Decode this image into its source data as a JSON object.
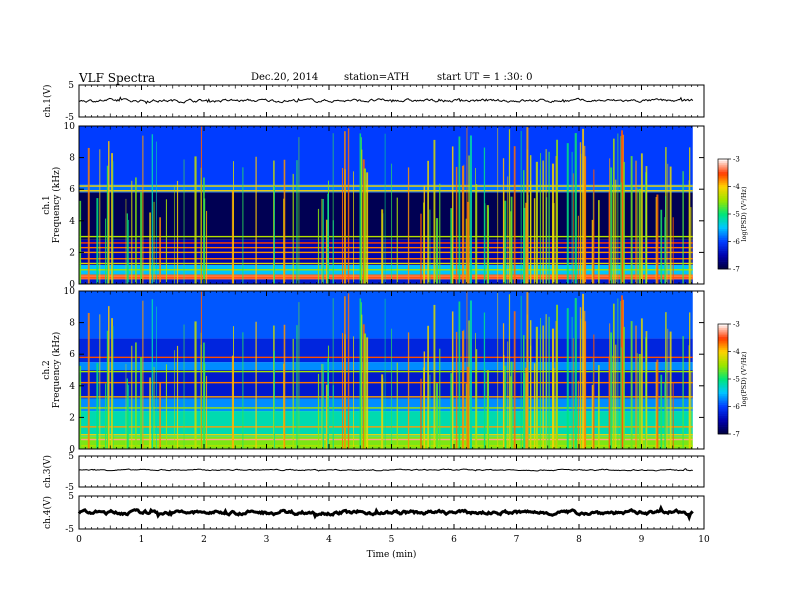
{
  "header": {
    "title": "VLF Spectra",
    "date": "Dec.20, 2014",
    "station": "station=ATH",
    "start": "start  UT =   1 :30: 0"
  },
  "chart_data": {
    "type": "heatmap",
    "title": "VLF Spectra",
    "xlabel": "Time (min)",
    "xlim": [
      0,
      10
    ],
    "x_ticks": [
      "0",
      "1",
      "2",
      "3",
      "4",
      "5",
      "6",
      "7",
      "8",
      "9",
      "10"
    ],
    "data_end_min": 9.82,
    "panels": [
      {
        "id": "ch1_wave",
        "kind": "waveform",
        "ylabel": "ch.1(V)",
        "ylim": [
          -5,
          5
        ],
        "y_ticks": [
          "5",
          "-5"
        ],
        "baseline": 0.1,
        "noise": 0.35
      },
      {
        "id": "ch1_spec",
        "kind": "spectrogram",
        "ylabel": "Frequency (kHz)",
        "channel_label": "ch.1",
        "ylim": [
          0,
          10
        ],
        "y_ticks": [
          "0",
          "2",
          "4",
          "6",
          "8",
          "10"
        ],
        "bands": [
          {
            "f0": 0.0,
            "f1": 0.3,
            "v": -6.3
          },
          {
            "f0": 0.3,
            "f1": 0.6,
            "v": -3.6
          },
          {
            "f0": 0.6,
            "f1": 1.2,
            "v": -5.5
          },
          {
            "f0": 1.2,
            "f1": 2.8,
            "v": -6.5
          },
          {
            "f0": 2.8,
            "f1": 5.8,
            "v": -6.9
          },
          {
            "f0": 5.8,
            "f1": 6.3,
            "v": -5.8
          },
          {
            "f0": 6.3,
            "f1": 10.0,
            "v": -6.0
          }
        ],
        "lines_khz": [
          0.35,
          0.5,
          0.9,
          1.3,
          1.6,
          2.0,
          2.3,
          2.6,
          3.0,
          5.9,
          6.2
        ]
      },
      {
        "id": "ch2_spec",
        "kind": "spectrogram",
        "ylabel": "Frequency (kHz)",
        "channel_label": "ch.2",
        "ylim": [
          0,
          10
        ],
        "y_ticks": [
          "0",
          "2",
          "4",
          "6",
          "8",
          "10"
        ],
        "bands": [
          {
            "f0": 0.0,
            "f1": 0.8,
            "v": -4.6
          },
          {
            "f0": 0.8,
            "f1": 2.4,
            "v": -5.2
          },
          {
            "f0": 2.4,
            "f1": 3.2,
            "v": -5.7
          },
          {
            "f0": 3.2,
            "f1": 5.0,
            "v": -6.3
          },
          {
            "f0": 5.0,
            "f1": 5.5,
            "v": -5.7
          },
          {
            "f0": 5.5,
            "f1": 7.0,
            "v": -6.2
          },
          {
            "f0": 7.0,
            "f1": 10.0,
            "v": -5.9
          }
        ],
        "lines_khz": [
          0.2,
          0.6,
          0.9,
          1.4,
          2.6,
          3.3,
          4.2,
          4.9,
          5.8
        ]
      },
      {
        "id": "ch3_wave",
        "kind": "waveform",
        "ylabel": "ch.3(V)",
        "ylim": [
          -5,
          5
        ],
        "y_ticks": [
          "5",
          "-5"
        ],
        "baseline": 0.5,
        "noise": 0.15
      },
      {
        "id": "ch4_wave",
        "kind": "waveform",
        "ylabel": "ch.4(V)",
        "ylim": [
          -5,
          5
        ],
        "y_ticks": [
          "5",
          "-5"
        ],
        "baseline": 0.0,
        "noise": 0.4
      }
    ],
    "colorbar": {
      "label": "log(PSD) (V²/Hz)",
      "range": [
        -7,
        -3
      ],
      "ticks": [
        "-3",
        "-4",
        "-5",
        "-6",
        "-7"
      ]
    }
  }
}
